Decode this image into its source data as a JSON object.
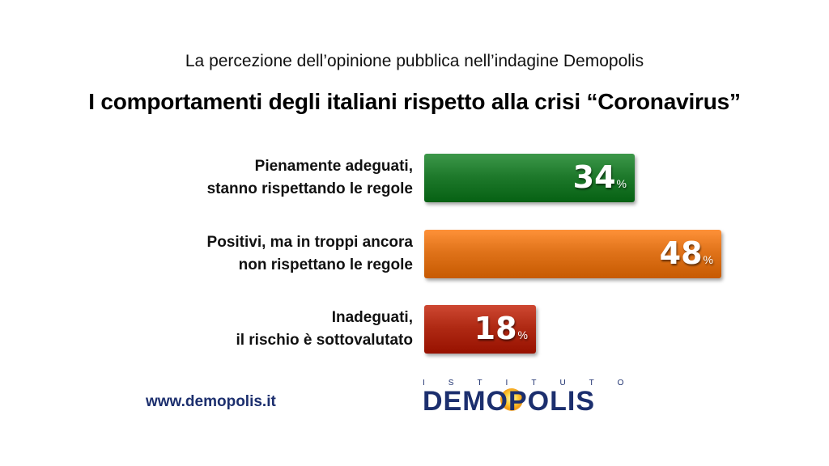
{
  "header": {
    "subtitle": "La percezione dell’opinione pubblica nell’indagine Demopolis",
    "title": "I comportamenti degli italiani rispetto alla crisi “Coronavirus”"
  },
  "chart_data": {
    "type": "bar",
    "orientation": "horizontal",
    "categories": [
      "Pienamente adeguati, stanno rispettando le regole",
      "Positivi, ma in troppi ancora non rispettano le regole",
      "Inadeguati, il rischio è sottovalutato"
    ],
    "category_lines": [
      [
        "Pienamente adeguati,",
        "stanno rispettando le regole"
      ],
      [
        "Positivi, ma in troppi ancora",
        "non rispettano le regole"
      ],
      [
        "Inadeguati,",
        "il rischio è sottovalutato"
      ]
    ],
    "values": [
      34,
      48,
      18
    ],
    "value_labels": [
      "34",
      "48",
      "18"
    ],
    "unit": "%",
    "colors": [
      "#1f7a2c",
      "#e0731a",
      "#b02a14"
    ],
    "xlim": [
      0,
      100
    ],
    "title": "I comportamenti degli italiani rispetto alla crisi “Coronavirus”",
    "grid": false
  },
  "footer": {
    "url": "www.demopolis.it",
    "logo_top": "ISTITUTO",
    "logo_main": "DEMOPOLIS"
  }
}
